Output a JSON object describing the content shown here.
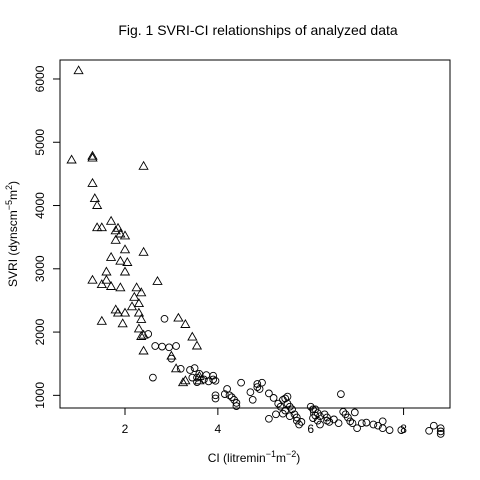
{
  "chart_data": {
    "type": "scatter",
    "title": "Fig. 1 SVRI-CI relationships of analyzed data",
    "xlabel_parts": {
      "base": "CI (litremin",
      "sup1": "−1",
      "mid": "m",
      "sup2": "−2",
      "end": ")"
    },
    "ylabel_parts": {
      "base": "SVRI (dynscm",
      "sup1": "−5",
      "mid": "m",
      "sup2": "2",
      "end": ")"
    },
    "xlim": [
      0.6,
      9.0
    ],
    "ylim": [
      800,
      6300
    ],
    "x_ticks": [
      2,
      4,
      6,
      8
    ],
    "y_ticks": [
      1000,
      2000,
      3000,
      4000,
      5000,
      6000
    ],
    "grid": false,
    "legend": "none",
    "series": [
      {
        "marker": "triangle",
        "points": [
          [
            1.0,
            6130
          ],
          [
            0.85,
            4720
          ],
          [
            1.3,
            4780
          ],
          [
            1.3,
            4750
          ],
          [
            2.4,
            4620
          ],
          [
            1.3,
            4350
          ],
          [
            1.35,
            4110
          ],
          [
            1.4,
            4000
          ],
          [
            1.4,
            3650
          ],
          [
            1.5,
            3650
          ],
          [
            1.7,
            3750
          ],
          [
            1.85,
            3640
          ],
          [
            1.8,
            3600
          ],
          [
            1.9,
            3550
          ],
          [
            2.0,
            3520
          ],
          [
            1.8,
            3450
          ],
          [
            2.0,
            3300
          ],
          [
            2.4,
            3260
          ],
          [
            1.7,
            3180
          ],
          [
            1.9,
            3120
          ],
          [
            2.05,
            3100
          ],
          [
            1.6,
            2950
          ],
          [
            2.0,
            2950
          ],
          [
            1.3,
            2820
          ],
          [
            1.6,
            2820
          ],
          [
            1.5,
            2750
          ],
          [
            1.7,
            2720
          ],
          [
            1.9,
            2700
          ],
          [
            2.7,
            2800
          ],
          [
            2.25,
            2700
          ],
          [
            2.35,
            2620
          ],
          [
            2.2,
            2550
          ],
          [
            2.3,
            2450
          ],
          [
            2.15,
            2400
          ],
          [
            1.8,
            2350
          ],
          [
            2.0,
            2300
          ],
          [
            1.85,
            2300
          ],
          [
            2.3,
            2300
          ],
          [
            1.5,
            2170
          ],
          [
            1.95,
            2130
          ],
          [
            2.35,
            2200
          ],
          [
            3.15,
            2220
          ],
          [
            3.3,
            2120
          ],
          [
            2.3,
            2050
          ],
          [
            2.4,
            1950
          ],
          [
            2.35,
            1930
          ],
          [
            3.45,
            1920
          ],
          [
            3.55,
            1780
          ],
          [
            2.4,
            1700
          ],
          [
            3.0,
            1620
          ],
          [
            3.1,
            1420
          ],
          [
            3.6,
            1300
          ],
          [
            3.6,
            1230
          ],
          [
            3.3,
            1230
          ],
          [
            3.25,
            1200
          ]
        ]
      },
      {
        "marker": "circle",
        "points": [
          [
            2.5,
            1970
          ],
          [
            2.85,
            2210
          ],
          [
            2.65,
            1780
          ],
          [
            2.8,
            1770
          ],
          [
            2.95,
            1760
          ],
          [
            3.1,
            1780
          ],
          [
            3.0,
            1580
          ],
          [
            2.6,
            1280
          ],
          [
            3.2,
            1420
          ],
          [
            3.5,
            1430
          ],
          [
            3.4,
            1400
          ],
          [
            3.6,
            1340
          ],
          [
            3.75,
            1320
          ],
          [
            3.55,
            1280
          ],
          [
            3.9,
            1310
          ],
          [
            3.45,
            1280
          ],
          [
            3.7,
            1250
          ],
          [
            3.55,
            1210
          ],
          [
            3.8,
            1220
          ],
          [
            3.9,
            1250
          ],
          [
            3.95,
            1230
          ],
          [
            3.95,
            1000
          ],
          [
            3.95,
            950
          ],
          [
            4.15,
            1020
          ],
          [
            4.25,
            1000
          ],
          [
            4.2,
            1100
          ],
          [
            4.3,
            970
          ],
          [
            4.35,
            930
          ],
          [
            4.4,
            880
          ],
          [
            4.4,
            830
          ],
          [
            4.5,
            1200
          ],
          [
            4.7,
            1050
          ],
          [
            4.75,
            930
          ],
          [
            4.85,
            1130
          ],
          [
            4.9,
            1100
          ],
          [
            4.85,
            1180
          ],
          [
            4.95,
            1200
          ],
          [
            5.1,
            1030
          ],
          [
            5.2,
            960
          ],
          [
            5.1,
            630
          ],
          [
            5.3,
            870
          ],
          [
            5.35,
            820
          ],
          [
            5.4,
            930
          ],
          [
            5.45,
            950
          ],
          [
            5.5,
            980
          ],
          [
            5.5,
            870
          ],
          [
            5.55,
            820
          ],
          [
            5.45,
            760
          ],
          [
            5.6,
            780
          ],
          [
            5.65,
            700
          ],
          [
            5.55,
            670
          ],
          [
            5.7,
            650
          ],
          [
            5.7,
            600
          ],
          [
            5.75,
            540
          ],
          [
            5.8,
            580
          ],
          [
            5.25,
            700
          ],
          [
            5.4,
            710
          ],
          [
            6.0,
            820
          ],
          [
            6.05,
            780
          ],
          [
            6.1,
            780
          ],
          [
            6.15,
            720
          ],
          [
            6.1,
            680
          ],
          [
            6.2,
            670
          ],
          [
            6.05,
            640
          ],
          [
            6.15,
            600
          ],
          [
            6.2,
            540
          ],
          [
            6.3,
            700
          ],
          [
            6.35,
            650
          ],
          [
            6.35,
            600
          ],
          [
            6.4,
            580
          ],
          [
            6.5,
            620
          ],
          [
            6.6,
            560
          ],
          [
            6.65,
            1020
          ],
          [
            6.7,
            740
          ],
          [
            6.75,
            700
          ],
          [
            6.8,
            650
          ],
          [
            6.85,
            590
          ],
          [
            6.9,
            560
          ],
          [
            6.95,
            730
          ],
          [
            7.0,
            480
          ],
          [
            7.1,
            560
          ],
          [
            7.2,
            570
          ],
          [
            7.35,
            540
          ],
          [
            7.45,
            520
          ],
          [
            7.55,
            590
          ],
          [
            7.55,
            480
          ],
          [
            7.7,
            450
          ],
          [
            7.95,
            450
          ],
          [
            8.55,
            440
          ],
          [
            8.65,
            520
          ],
          [
            8.8,
            480
          ],
          [
            8.8,
            430
          ],
          [
            8.8,
            390
          ]
        ]
      }
    ]
  }
}
